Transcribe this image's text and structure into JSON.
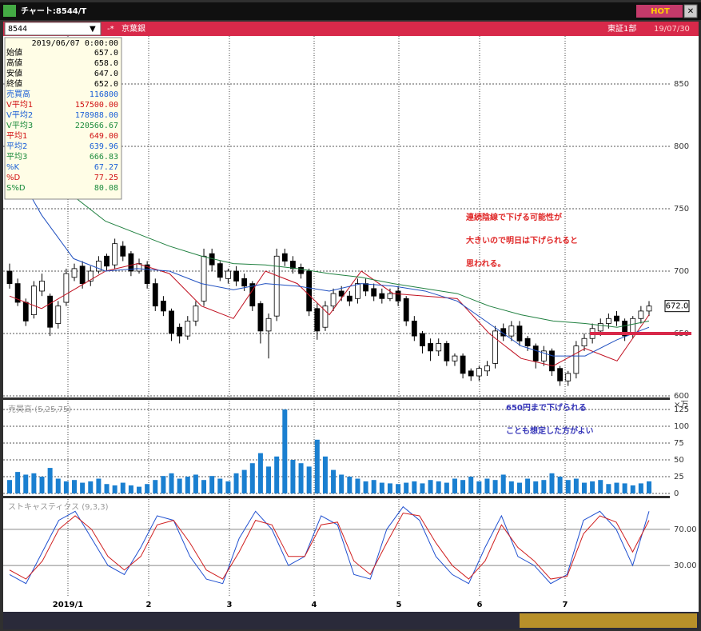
{
  "window": {
    "title": "チャート:8544/T",
    "hot": "HOT"
  },
  "toolbar": {
    "code": "8544",
    "name": "京葉銀",
    "market": "東証1部",
    "date": "19/07/30"
  },
  "info": {
    "date": "2019/06/07 0:00:00",
    "rows": [
      {
        "label": "始値",
        "value": "657.0",
        "color": "#000"
      },
      {
        "label": "高値",
        "value": "658.0",
        "color": "#000"
      },
      {
        "label": "安値",
        "value": "647.0",
        "color": "#000"
      },
      {
        "label": "終値",
        "value": "652.0",
        "color": "#000"
      },
      {
        "label": "売買高",
        "value": "116800",
        "color": "#1a5fd6"
      },
      {
        "label": "V平均1",
        "value": "157500.00",
        "color": "#d01010"
      },
      {
        "label": "V平均2",
        "value": "178988.00",
        "color": "#1a5fd6"
      },
      {
        "label": "V平均3",
        "value": "220566.67",
        "color": "#1a8a3a"
      },
      {
        "label": "平均1",
        "value": "649.00",
        "color": "#d01010"
      },
      {
        "label": "平均2",
        "value": "639.96",
        "color": "#1a5fd6"
      },
      {
        "label": "平均3",
        "value": "666.83",
        "color": "#1a8a3a"
      },
      {
        "label": "%K",
        "value": "67.27",
        "color": "#1a5fd6"
      },
      {
        "label": "%D",
        "value": "77.25",
        "color": "#d01010"
      },
      {
        "label": "S%D",
        "value": "80.08",
        "color": "#1a8a3a"
      }
    ]
  },
  "annotations": {
    "red": [
      "連続陰線で下げる可能性が",
      "大きいので明日は下げられると",
      "思われる。"
    ],
    "blue": [
      "650円まで下げられる",
      "ことも想定した方がよい"
    ]
  },
  "chart": {
    "x_labels": [
      "2019/1",
      "2",
      "3",
      "4",
      "5",
      "6",
      "7"
    ],
    "price_ticks": [
      850,
      800,
      750,
      700,
      650,
      600
    ],
    "price_lim": [
      600,
      850
    ],
    "support_line": 650,
    "last_price_label": "672.0",
    "candles": {
      "open": [
        700,
        690,
        675,
        665,
        684,
        680,
        658,
        675,
        695,
        704,
        692,
        700,
        712,
        705,
        720,
        714,
        700,
        705,
        690,
        676,
        668,
        655,
        648,
        660,
        676,
        714,
        706,
        694,
        700,
        694,
        690,
        674,
        652,
        664,
        714,
        708,
        703,
        700,
        670,
        655,
        672,
        684,
        680,
        678,
        690,
        686,
        682,
        678,
        684,
        678,
        660,
        650,
        642,
        636,
        642,
        628,
        632,
        620,
        616,
        620,
        626,
        654,
        648,
        656,
        646,
        640,
        628,
        636,
        622,
        612,
        618,
        640,
        646,
        652,
        658,
        664,
        660,
        650,
        662,
        668
      ],
      "high": [
        706,
        694,
        678,
        692,
        698,
        682,
        676,
        702,
        706,
        708,
        704,
        712,
        714,
        726,
        724,
        716,
        710,
        708,
        694,
        680,
        670,
        658,
        664,
        676,
        718,
        718,
        708,
        702,
        704,
        698,
        692,
        676,
        666,
        718,
        718,
        712,
        706,
        702,
        674,
        676,
        686,
        688,
        684,
        694,
        694,
        690,
        686,
        686,
        688,
        680,
        664,
        652,
        646,
        646,
        644,
        634,
        634,
        622,
        624,
        628,
        656,
        658,
        660,
        660,
        648,
        642,
        640,
        638,
        624,
        620,
        644,
        650,
        658,
        662,
        666,
        668,
        662,
        664,
        672,
        676
      ],
      "low": [
        686,
        672,
        656,
        662,
        680,
        648,
        654,
        672,
        692,
        686,
        688,
        698,
        700,
        702,
        708,
        696,
        698,
        686,
        668,
        664,
        644,
        642,
        645,
        656,
        672,
        700,
        692,
        690,
        688,
        684,
        668,
        642,
        630,
        660,
        704,
        698,
        694,
        664,
        645,
        652,
        668,
        676,
        672,
        674,
        680,
        676,
        674,
        676,
        672,
        656,
        644,
        634,
        628,
        632,
        624,
        624,
        614,
        612,
        612,
        616,
        622,
        644,
        644,
        640,
        636,
        622,
        624,
        616,
        608,
        608,
        614,
        636,
        642,
        648,
        654,
        656,
        644,
        646,
        658,
        664
      ],
      "close": [
        690,
        675,
        660,
        688,
        692,
        655,
        672,
        698,
        702,
        690,
        700,
        708,
        704,
        722,
        712,
        700,
        706,
        690,
        672,
        668,
        650,
        648,
        660,
        672,
        712,
        705,
        695,
        700,
        692,
        688,
        672,
        652,
        662,
        712,
        708,
        702,
        698,
        668,
        652,
        672,
        682,
        680,
        676,
        690,
        684,
        680,
        678,
        682,
        676,
        660,
        648,
        640,
        636,
        642,
        628,
        632,
        618,
        616,
        622,
        624,
        652,
        648,
        656,
        644,
        640,
        628,
        636,
        620,
        612,
        618,
        640,
        646,
        654,
        658,
        662,
        660,
        648,
        662,
        668,
        672
      ]
    },
    "moving_averages": [
      {
        "color": "#c01020",
        "values": [
          680,
          670,
          685,
          700,
          706,
          698,
          672,
          662,
          700,
          690,
          665,
          700,
          682,
          680,
          678,
          650,
          630,
          624,
          638,
          628,
          665
        ]
      },
      {
        "color": "#2050c0",
        "values": [
          790,
          745,
          710,
          700,
          702,
          700,
          690,
          685,
          690,
          688,
          684,
          690,
          688,
          684,
          676,
          658,
          640,
          632,
          632,
          645,
          655
        ]
      },
      {
        "color": "#208040",
        "values": [
          805,
          790,
          760,
          740,
          730,
          720,
          712,
          706,
          705,
          702,
          698,
          695,
          690,
          686,
          682,
          672,
          665,
          660,
          658,
          655,
          660
        ]
      }
    ],
    "volume": {
      "label": "売買高 (5,25,75)",
      "unit": "×万",
      "ticks": [
        125,
        100,
        75,
        50,
        25,
        0
      ],
      "lim": [
        0,
        130
      ],
      "color": "#1a7fd0",
      "values": [
        20,
        32,
        28,
        30,
        25,
        38,
        22,
        18,
        20,
        16,
        18,
        22,
        14,
        12,
        16,
        12,
        10,
        14,
        20,
        26,
        30,
        22,
        25,
        28,
        20,
        26,
        22,
        18,
        30,
        35,
        45,
        60,
        40,
        55,
        125,
        50,
        45,
        40,
        80,
        55,
        35,
        28,
        25,
        22,
        18,
        20,
        16,
        15,
        14,
        16,
        18,
        15,
        20,
        18,
        16,
        22,
        20,
        25,
        18,
        22,
        20,
        28,
        18,
        16,
        22,
        18,
        20,
        30,
        25,
        20,
        22,
        16,
        18,
        20,
        14,
        16,
        15,
        12,
        15,
        18
      ]
    },
    "stochastic": {
      "label": "ストキャスティクス (9,3,3)",
      "lim": [
        0,
        100
      ],
      "ticks": [
        {
          "value": 70,
          "label": "70.00"
        },
        {
          "value": 30,
          "label": "30.00"
        }
      ],
      "k": {
        "color": "#2050d0",
        "values": [
          20,
          10,
          45,
          80,
          90,
          60,
          30,
          20,
          50,
          85,
          80,
          40,
          15,
          10,
          60,
          90,
          70,
          30,
          40,
          85,
          75,
          20,
          15,
          70,
          95,
          80,
          40,
          20,
          10,
          50,
          85,
          40,
          30,
          10,
          20,
          80,
          90,
          70,
          30,
          90
        ]
      },
      "d": {
        "color": "#d02020",
        "values": [
          25,
          15,
          35,
          70,
          85,
          70,
          40,
          25,
          40,
          75,
          80,
          55,
          25,
          15,
          45,
          80,
          75,
          40,
          40,
          75,
          78,
          35,
          20,
          55,
          88,
          85,
          55,
          30,
          15,
          35,
          75,
          50,
          35,
          15,
          18,
          65,
          85,
          78,
          45,
          80
        ]
      }
    }
  }
}
